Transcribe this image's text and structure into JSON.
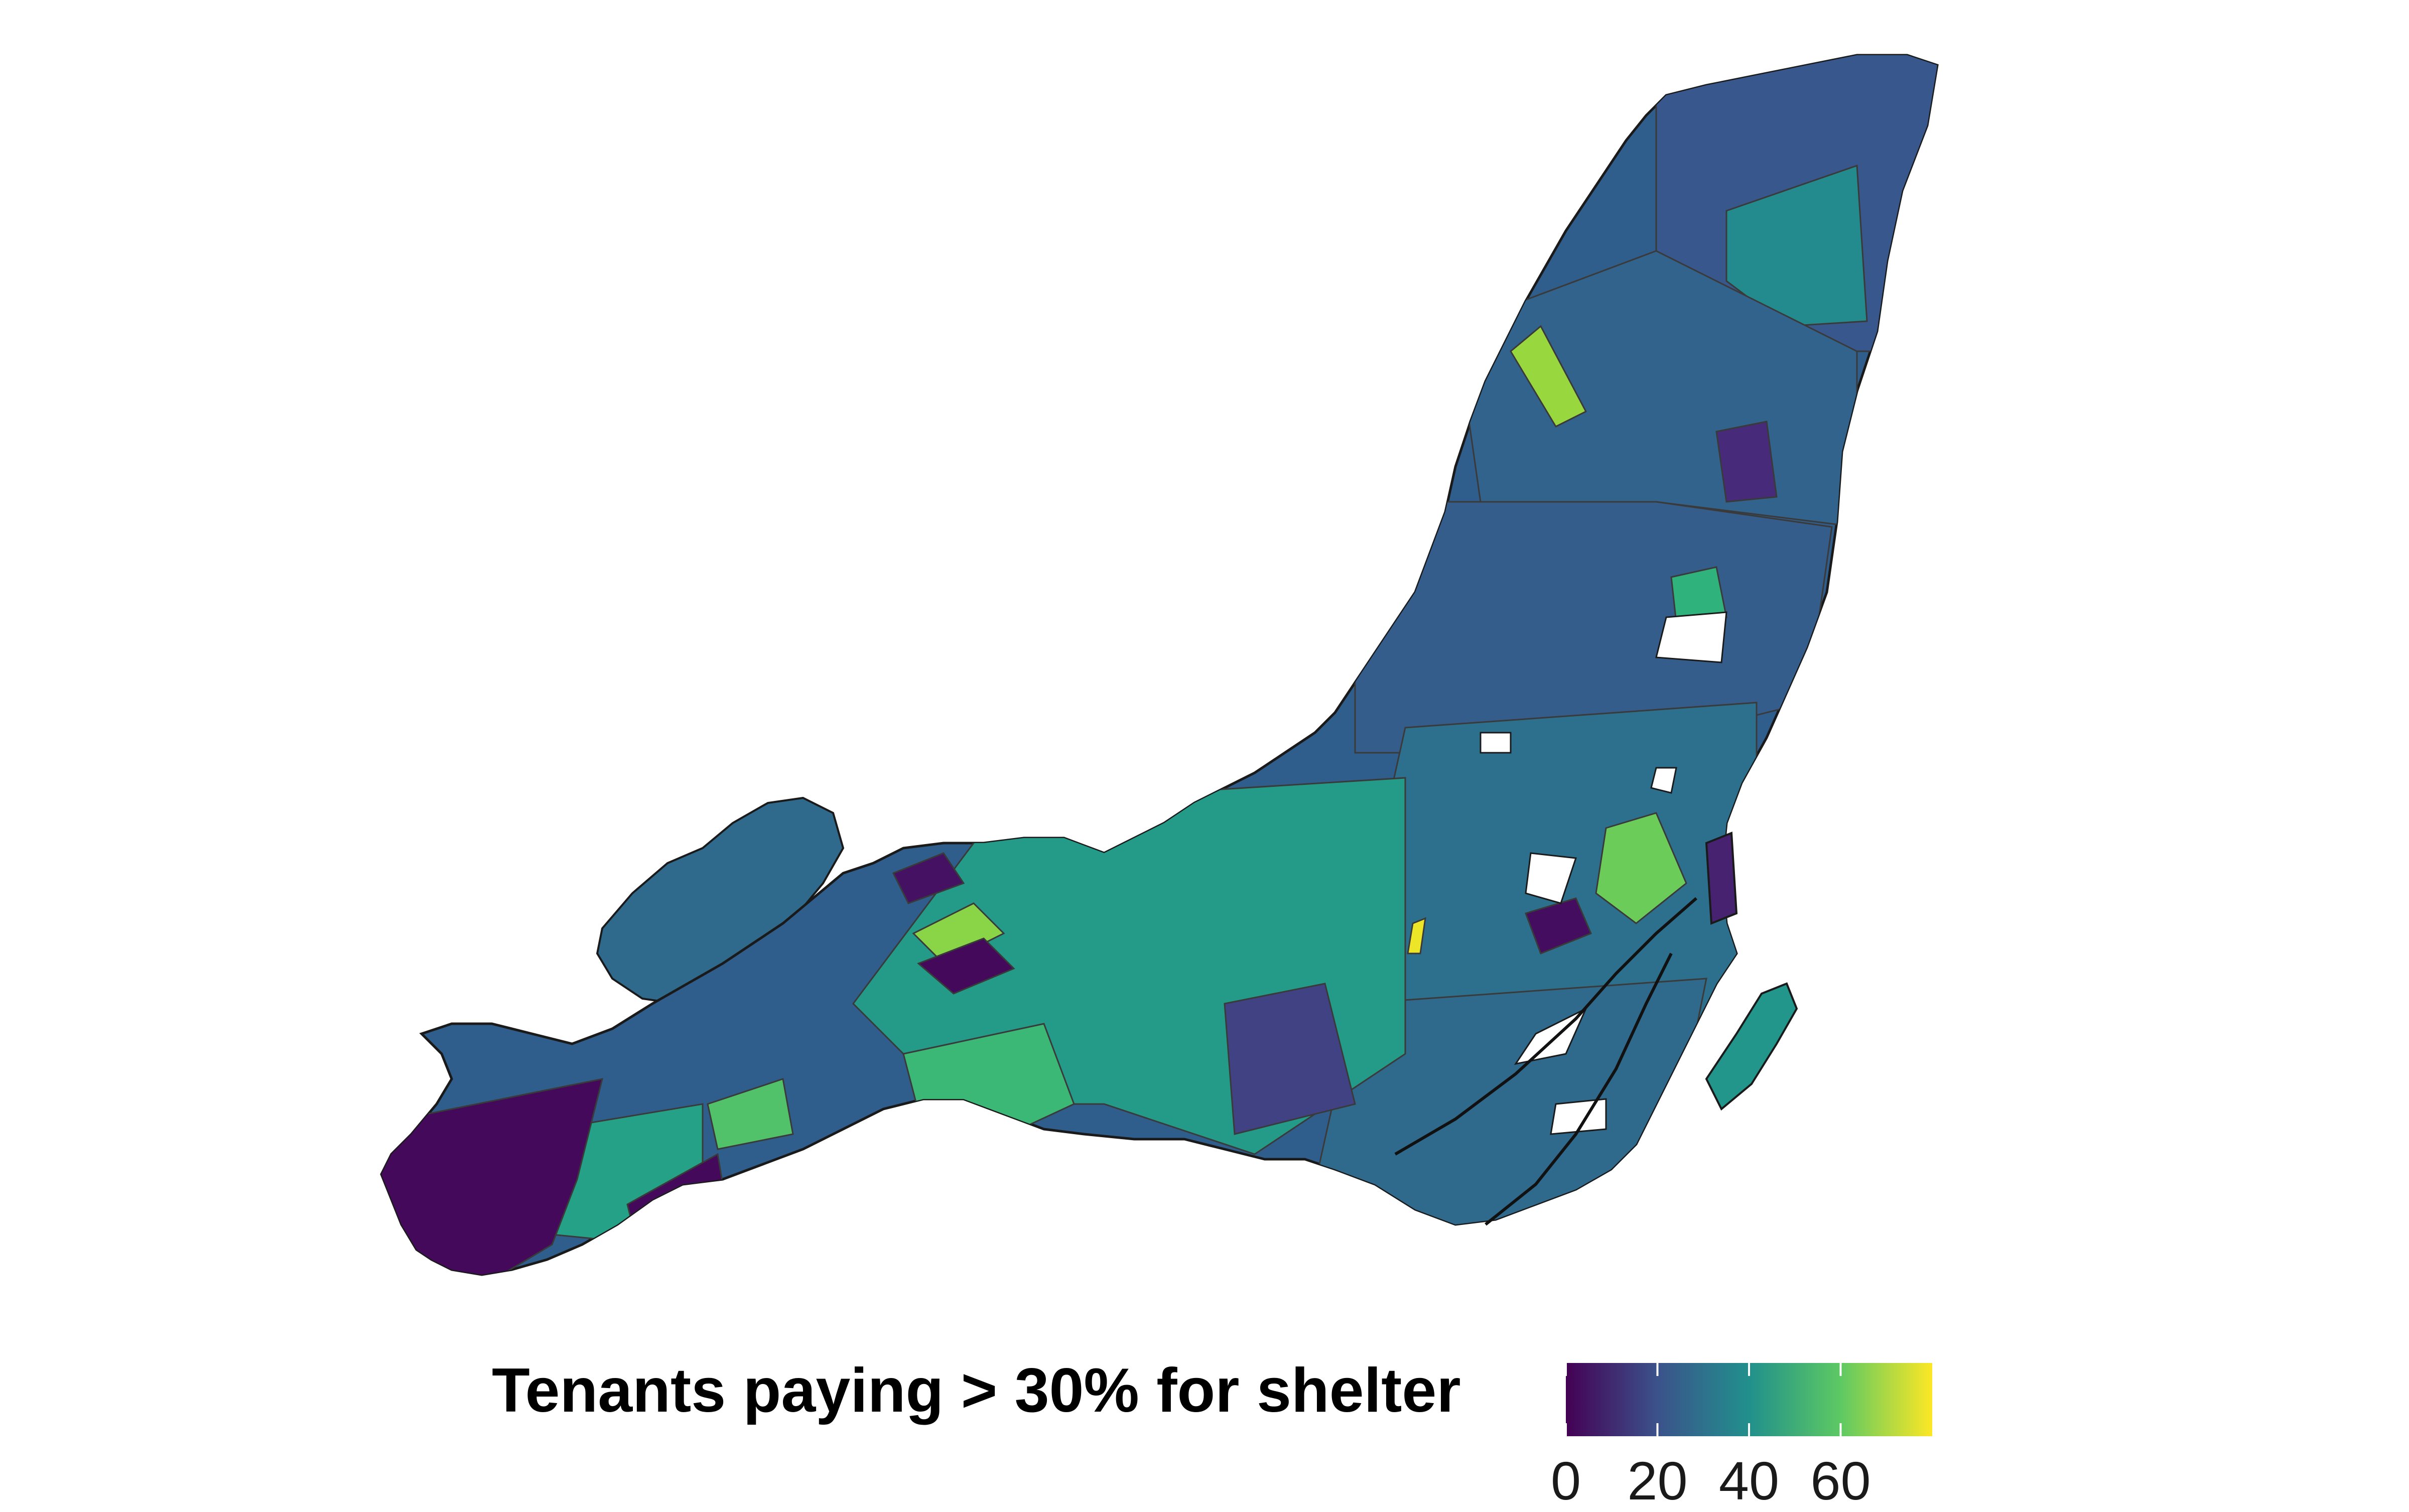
{
  "map": {
    "colorscale": "viridis",
    "value_range": [
      0,
      80
    ],
    "island_fill_default": "#2f5e8c",
    "region_fills": [
      {
        "name": "north-east-tip",
        "value": 22
      },
      {
        "name": "north-east-inner",
        "value": 38
      },
      {
        "name": "north-shore-bright-strip",
        "value": 68
      },
      {
        "name": "north-central",
        "value": 26
      },
      {
        "name": "central-large",
        "value": 24
      },
      {
        "name": "central-green-patch",
        "value": 52
      },
      {
        "name": "east-core",
        "value": 30
      },
      {
        "name": "downtown-bright",
        "value": 62
      },
      {
        "name": "downtown-yellow-sliver",
        "value": 78
      },
      {
        "name": "downtown-dark",
        "value": 3
      },
      {
        "name": "plateau-dark-patch",
        "value": 10
      },
      {
        "name": "west-big-teal",
        "value": 44
      },
      {
        "name": "west-north-lobe",
        "value": 28
      },
      {
        "name": "west-bright-patch",
        "value": 66
      },
      {
        "name": "west-dark-patch",
        "value": 2
      },
      {
        "name": "west-dark-strip",
        "value": 4
      },
      {
        "name": "south-west-dark-tip",
        "value": 2
      },
      {
        "name": "south-west-dark-block",
        "value": 2
      },
      {
        "name": "south-west-green",
        "value": 46
      },
      {
        "name": "south-west-bright",
        "value": 58
      },
      {
        "name": "south-central-green",
        "value": 54
      },
      {
        "name": "south-central-dark",
        "value": 16
      },
      {
        "name": "south-east-island",
        "value": 42
      },
      {
        "name": "harbour-dark-strip",
        "value": 8
      },
      {
        "name": "south-core",
        "value": 28
      }
    ]
  },
  "legend": {
    "title": "Tenants paying > 30% for shelter",
    "ticks": [
      {
        "value": 0,
        "label": "0"
      },
      {
        "value": 20,
        "label": "20"
      },
      {
        "value": 40,
        "label": "40"
      },
      {
        "value": 60,
        "label": "60"
      }
    ],
    "colors": {
      "stop_0": "#440154",
      "stop_1": "#3b528b",
      "stop_2": "#21908c",
      "stop_3": "#5dc963",
      "stop_4": "#fde725"
    }
  }
}
